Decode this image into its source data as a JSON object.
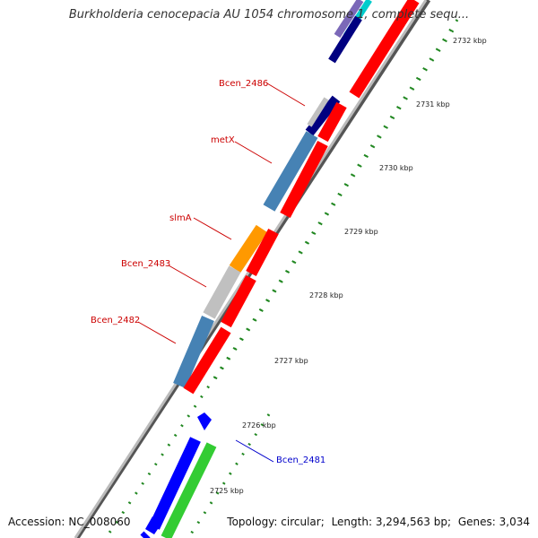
{
  "title": "Burkholderia cenocepacia AU 1054 chromosome 1, complete sequ...",
  "footer": {
    "accession_label": "Accession:",
    "accession": "NC_008060",
    "topology_label": "Topology:",
    "topology": "circular;",
    "length_label": "Length:",
    "length": "3,294,563 bp;",
    "genes_label": "Genes:",
    "genes": "3,034"
  },
  "ticks": [
    "2732 kbp",
    "2731 kbp",
    "2730 kbp",
    "2729 kbp",
    "2728 kbp",
    "2727 kbp",
    "2726 kbp",
    "2725 kbp"
  ],
  "gene_labels": [
    {
      "name": "Bcen_2486",
      "color": "#cc0000"
    },
    {
      "name": "metX",
      "color": "#cc0000"
    },
    {
      "name": "slmA",
      "color": "#cc0000"
    },
    {
      "name": "Bcen_2483",
      "color": "#cc0000"
    },
    {
      "name": "Bcen_2482",
      "color": "#cc0000"
    },
    {
      "name": "Bcen_2481",
      "color": "#0000cc"
    }
  ],
  "colors": {
    "cds_red": "#ff0000",
    "steelblue": "#4682b4",
    "orange": "#ff9900",
    "grey": "#c0c0c0",
    "blue": "#0000ff",
    "green": "#33cc33",
    "navy": "#000080",
    "tick_green": "#006600"
  }
}
